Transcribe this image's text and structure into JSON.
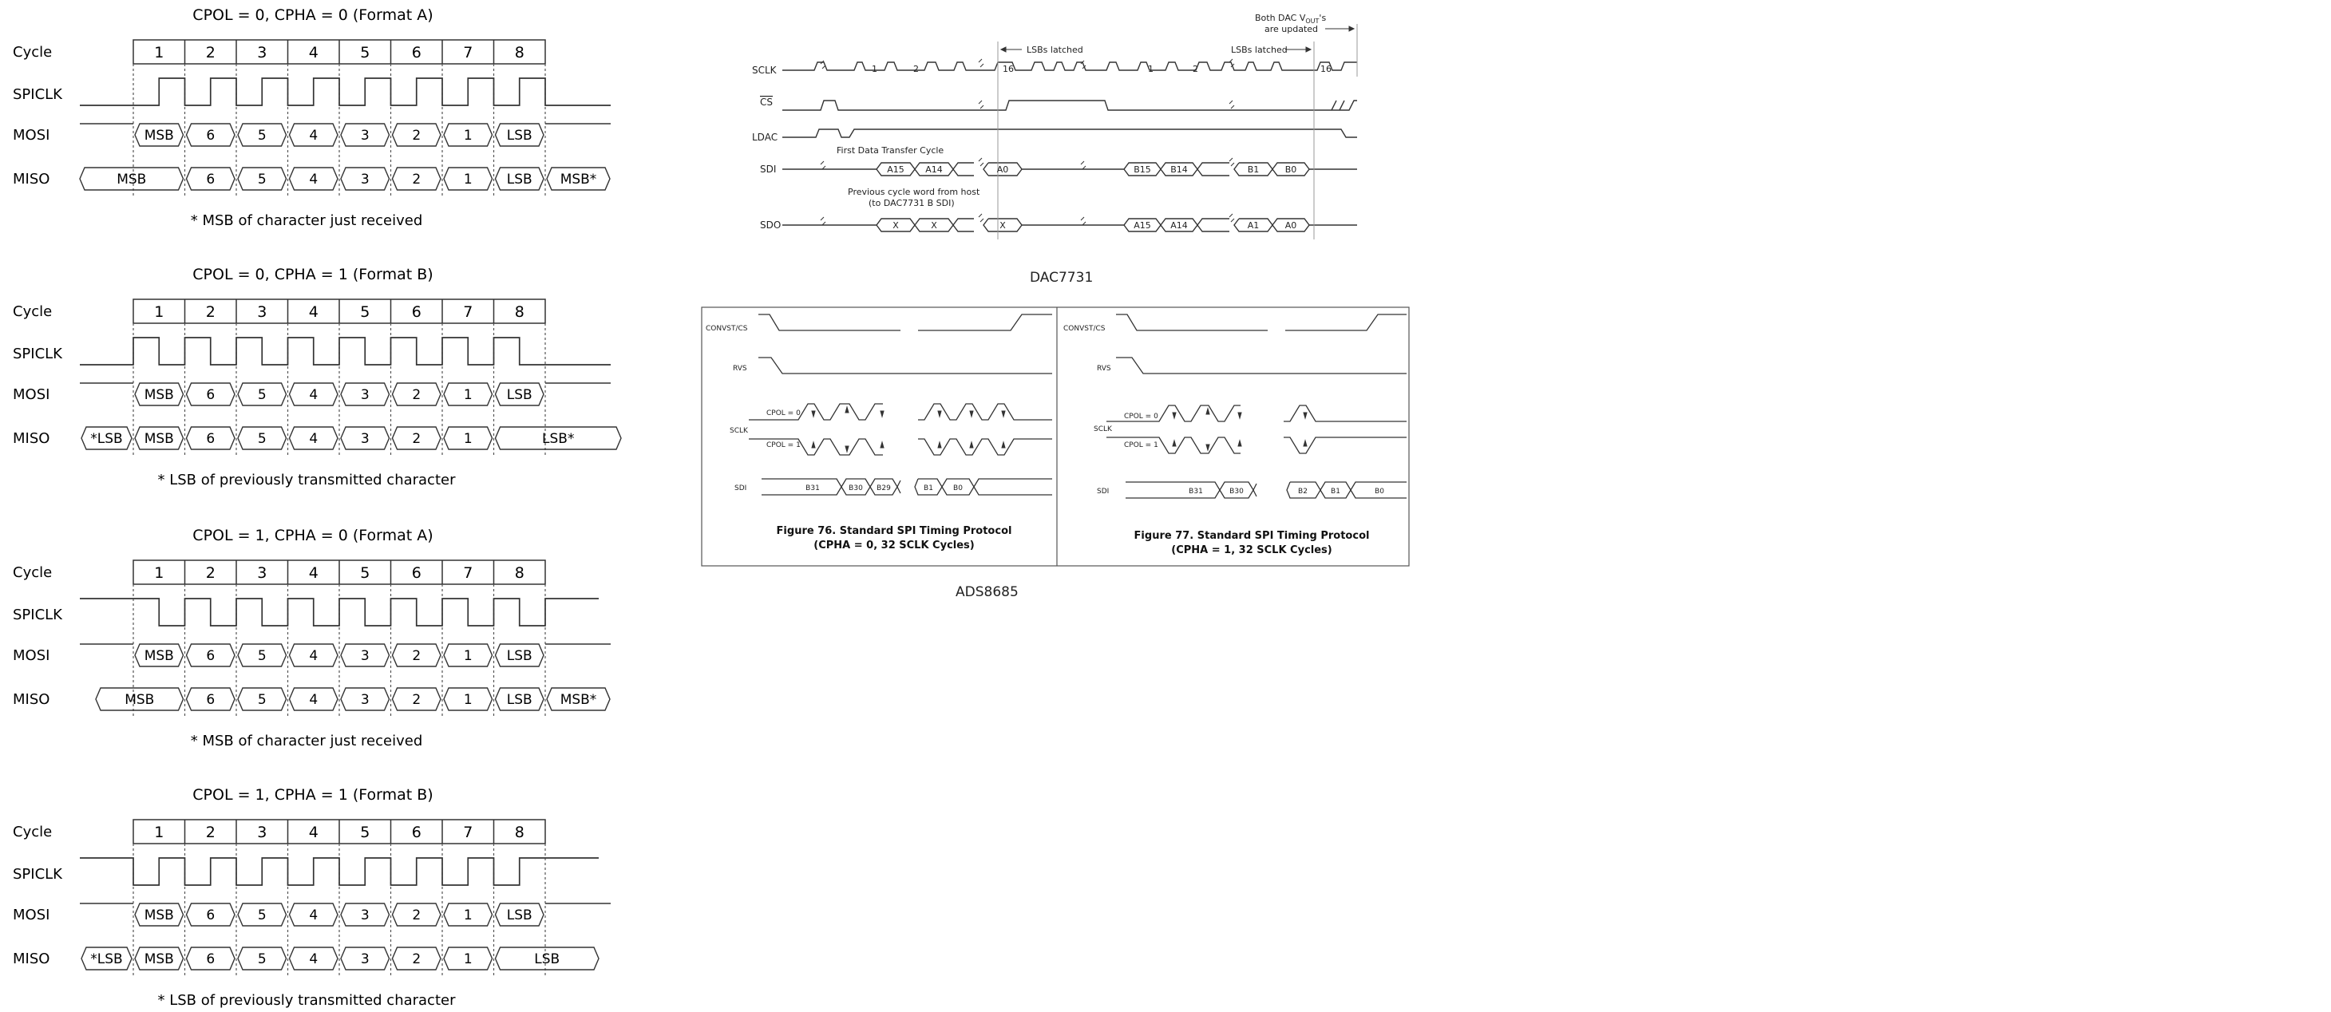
{
  "spi_formats": [
    {
      "title": "CPOL = 0, CPHA = 0 (Format A)",
      "cycle_label": "Cycle",
      "cycles": [
        "1",
        "2",
        "3",
        "4",
        "5",
        "6",
        "7",
        "8"
      ],
      "signals": [
        "SPICLK",
        "MOSI",
        "MISO"
      ],
      "mosi": [
        "MSB",
        "6",
        "5",
        "4",
        "3",
        "2",
        "1",
        "LSB"
      ],
      "miso": [
        "MSB",
        "6",
        "5",
        "4",
        "3",
        "2",
        "1",
        "LSB",
        "MSB*"
      ],
      "footnote": "* MSB of character just received"
    },
    {
      "title": "CPOL = 0, CPHA = 1 (Format B)",
      "cycle_label": "Cycle",
      "cycles": [
        "1",
        "2",
        "3",
        "4",
        "5",
        "6",
        "7",
        "8"
      ],
      "signals": [
        "SPICLK",
        "MOSI",
        "MISO"
      ],
      "mosi": [
        "MSB",
        "6",
        "5",
        "4",
        "3",
        "2",
        "1",
        "LSB"
      ],
      "miso": [
        "*LSB",
        "MSB",
        "6",
        "5",
        "4",
        "3",
        "2",
        "1",
        "LSB*"
      ],
      "footnote": "* LSB of previously transmitted character"
    },
    {
      "title": "CPOL = 1, CPHA = 0 (Format A)",
      "cycle_label": "Cycle",
      "cycles": [
        "1",
        "2",
        "3",
        "4",
        "5",
        "6",
        "7",
        "8"
      ],
      "signals": [
        "SPICLK",
        "MOSI",
        "MISO"
      ],
      "mosi": [
        "MSB",
        "6",
        "5",
        "4",
        "3",
        "2",
        "1",
        "LSB"
      ],
      "miso": [
        "MSB",
        "6",
        "5",
        "4",
        "3",
        "2",
        "1",
        "LSB",
        "MSB*"
      ],
      "footnote": "* MSB of character just received"
    },
    {
      "title": "CPOL = 1, CPHA = 1 (Format B)",
      "cycle_label": "Cycle",
      "cycles": [
        "1",
        "2",
        "3",
        "4",
        "5",
        "6",
        "7",
        "8"
      ],
      "signals": [
        "SPICLK",
        "MOSI",
        "MISO"
      ],
      "mosi": [
        "MSB",
        "6",
        "5",
        "4",
        "3",
        "2",
        "1",
        "LSB"
      ],
      "miso": [
        "*LSB",
        "MSB",
        "6",
        "5",
        "4",
        "3",
        "2",
        "1",
        "LSB"
      ],
      "footnote": "* LSB of previously transmitted character"
    }
  ],
  "dac7731": {
    "signals": [
      "SCLK",
      "CS",
      "LDAC",
      "SDI",
      "SDO"
    ],
    "sclk_labels": [
      "1",
      "2",
      "16",
      "1",
      "2",
      "16"
    ],
    "note_lsbs_1": "LSBs latched",
    "note_lsbs_2": "LSBs latched",
    "note_both_1": "Both DAC V",
    "note_both_sub": "OUT",
    "note_both_2": "'s",
    "note_both_3": "are updated",
    "note_first": "First Data Transfer Cycle",
    "note_prev_1": "Previous cycle word from host",
    "note_prev_2": "(to DAC7731 B SDI)",
    "sdi_words": [
      "A15",
      "A14",
      "A0",
      "B15",
      "B14",
      "B1",
      "B0"
    ],
    "sdo_words": [
      "X",
      "X",
      "X",
      "A15",
      "A14",
      "A1",
      "A0"
    ],
    "caption": "DAC7731"
  },
  "ads8685": {
    "fig76": {
      "signals": [
        "CONVST/CS",
        "RVS",
        "SCLK",
        "SDI"
      ],
      "cpol0": "CPOL = 0",
      "cpol1": "CPOL = 1",
      "sdi_words": [
        "B31",
        "B30",
        "B29",
        "B1",
        "B0"
      ],
      "caption1": "Figure 76. Standard SPI Timing Protocol",
      "caption2": "(CPHA = 0, 32 SCLK Cycles)"
    },
    "fig77": {
      "signals": [
        "CONVST/CS",
        "RVS",
        "SCLK",
        "SDI"
      ],
      "cpol0": "CPOL = 0",
      "cpol1": "CPOL = 1",
      "sdi_words": [
        "B31",
        "B30",
        "B2",
        "B1",
        "B0"
      ],
      "caption1": "Figure 77. Standard SPI Timing Protocol",
      "caption2": "(CPHA = 1, 32 SCLK Cycles)"
    },
    "caption": "ADS8685"
  }
}
